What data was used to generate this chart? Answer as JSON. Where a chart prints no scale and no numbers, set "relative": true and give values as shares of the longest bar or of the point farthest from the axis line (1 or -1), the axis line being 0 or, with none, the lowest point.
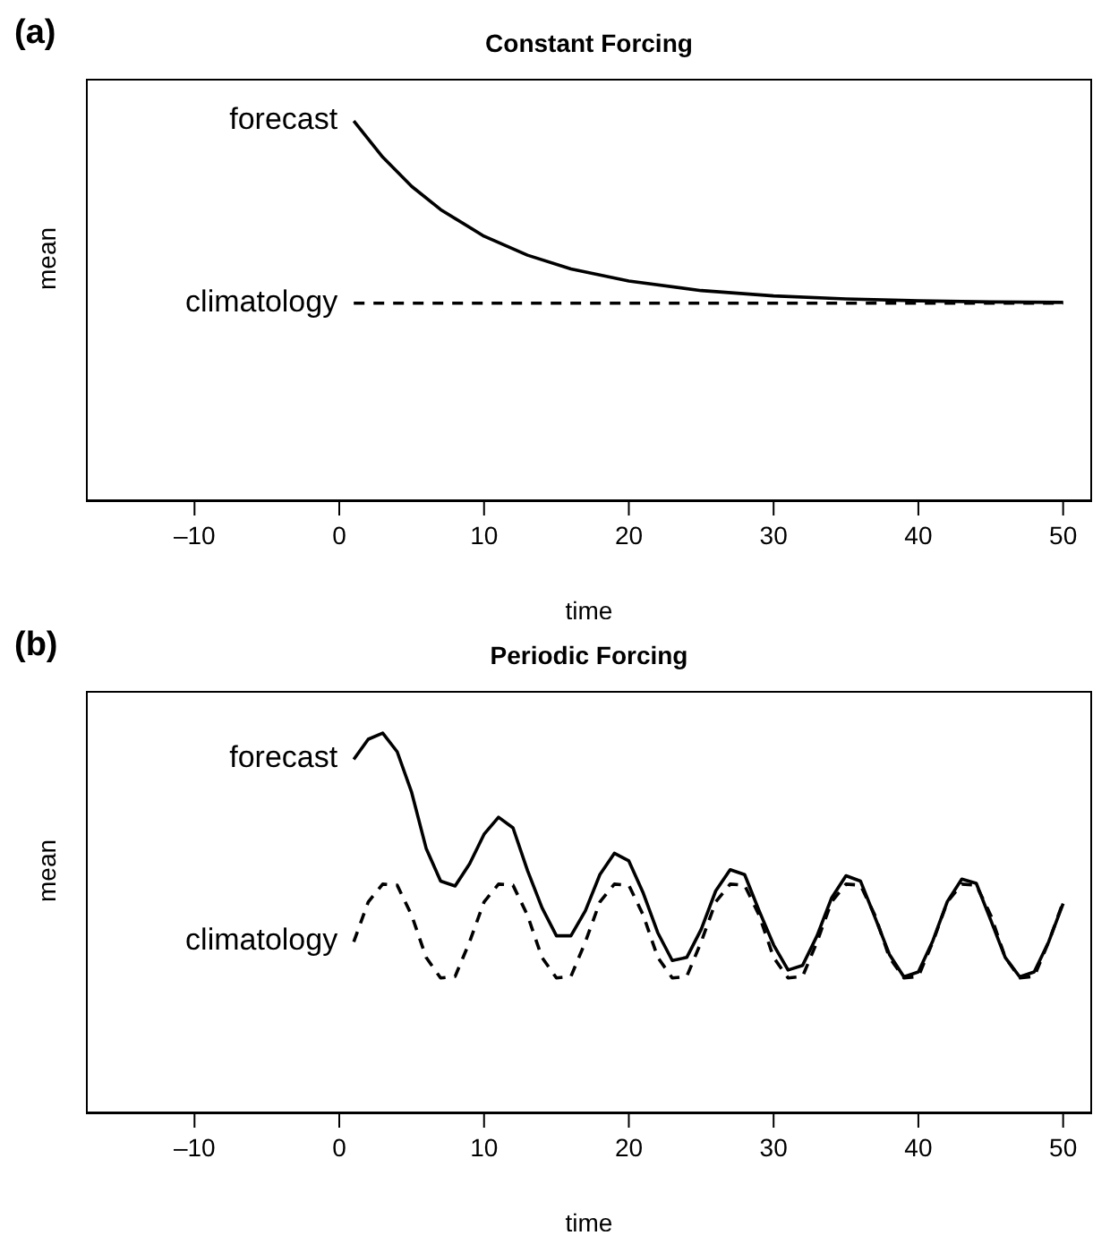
{
  "chart_data": [
    {
      "type": "line",
      "title": "Constant Forcing",
      "xlabel": "time",
      "ylabel": "mean",
      "annotations": [
        "(a)"
      ],
      "relative": true,
      "tick_labels": "x",
      "xlim": [
        -17.5,
        52
      ],
      "xticks": [
        {
          "value": -10,
          "label": "–10"
        },
        0,
        10,
        20,
        30,
        40,
        50
      ],
      "grid": false,
      "legend": false,
      "marker": "none",
      "series": [
        {
          "name": "forecast",
          "color": "#000000",
          "line_style": "solid",
          "x": [
            1,
            3,
            5,
            7,
            10,
            13,
            16,
            20,
            25,
            30,
            35,
            40,
            45,
            50
          ],
          "values": [
            1.0,
            0.905,
            0.828,
            0.767,
            0.697,
            0.647,
            0.611,
            0.579,
            0.554,
            0.54,
            0.532,
            0.527,
            0.524,
            0.523
          ]
        },
        {
          "name": "climatology",
          "color": "#000000",
          "line_style": "dashed",
          "x": [
            1,
            50
          ],
          "values": [
            0.521,
            0.521
          ]
        }
      ]
    },
    {
      "type": "line",
      "title": "Periodic Forcing",
      "xlabel": "time",
      "ylabel": "mean",
      "annotations": [
        "(b)"
      ],
      "relative": true,
      "tick_labels": "x",
      "xlim": [
        -17.5,
        52
      ],
      "xticks": [
        {
          "value": -10,
          "label": "–10"
        },
        0,
        10,
        20,
        30,
        40,
        50
      ],
      "grid": false,
      "legend": false,
      "marker": "none",
      "series": [
        {
          "name": "forecast",
          "color": "#000000",
          "line_style": "solid",
          "x": [
            1,
            2,
            3,
            4,
            5,
            6,
            7,
            8,
            9,
            10,
            11,
            12,
            13,
            14,
            15,
            16,
            17,
            18,
            19,
            20,
            21,
            22,
            23,
            24,
            25,
            26,
            27,
            28,
            29,
            30,
            31,
            32,
            33,
            34,
            35,
            36,
            37,
            38,
            39,
            40,
            41,
            42,
            43,
            44,
            45,
            46,
            47,
            48,
            49,
            50
          ],
          "values": [
            0.931,
            0.984,
            1.0,
            0.951,
            0.844,
            0.697,
            0.611,
            0.598,
            0.656,
            0.734,
            0.779,
            0.751,
            0.639,
            0.541,
            0.467,
            0.467,
            0.533,
            0.628,
            0.684,
            0.664,
            0.579,
            0.475,
            0.402,
            0.41,
            0.484,
            0.585,
            0.641,
            0.628,
            0.533,
            0.443,
            0.377,
            0.389,
            0.467,
            0.566,
            0.625,
            0.611,
            0.516,
            0.418,
            0.359,
            0.372,
            0.454,
            0.557,
            0.616,
            0.605,
            0.508,
            0.41,
            0.359,
            0.372,
            0.451,
            0.552
          ]
        },
        {
          "name": "climatology",
          "color": "#000000",
          "line_style": "dashed",
          "x": [
            1,
            2,
            3,
            4,
            5,
            6,
            7,
            8,
            9,
            10,
            11,
            12,
            13,
            14,
            15,
            16,
            17,
            18,
            19,
            20,
            21,
            22,
            23,
            24,
            25,
            26,
            27,
            28,
            29,
            30,
            31,
            32,
            33,
            34,
            35,
            36,
            37,
            38,
            39,
            40,
            41,
            42,
            43,
            44,
            45,
            46,
            47,
            48,
            49,
            50
          ],
          "values": [
            0.451,
            0.556,
            0.603,
            0.6,
            0.521,
            0.41,
            0.356,
            0.36,
            0.451,
            0.556,
            0.603,
            0.6,
            0.521,
            0.41,
            0.356,
            0.36,
            0.451,
            0.556,
            0.603,
            0.6,
            0.521,
            0.41,
            0.356,
            0.36,
            0.451,
            0.556,
            0.603,
            0.6,
            0.521,
            0.41,
            0.356,
            0.36,
            0.451,
            0.556,
            0.603,
            0.6,
            0.521,
            0.41,
            0.356,
            0.36,
            0.451,
            0.556,
            0.603,
            0.6,
            0.521,
            0.41,
            0.356,
            0.36,
            0.451,
            0.556
          ]
        }
      ]
    }
  ]
}
